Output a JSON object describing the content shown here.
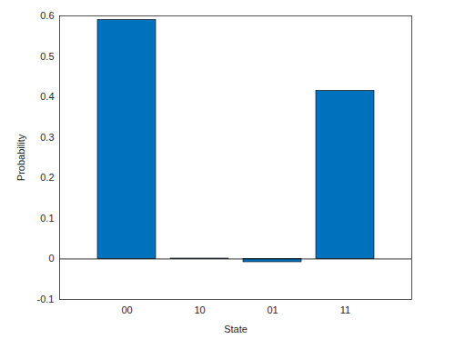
{
  "chart_data": {
    "type": "bar",
    "xlabel": "State",
    "ylabel": "Probability",
    "categories": [
      "00",
      "10",
      "01",
      "11"
    ],
    "values": [
      0.59,
      0.001,
      -0.008,
      0.415
    ],
    "color": "#0072bd",
    "ylim": [
      -0.1,
      0.6
    ],
    "yticks": [
      -0.1,
      0,
      0.1,
      0.2,
      0.3,
      0.4,
      0.5,
      0.6
    ],
    "grid": false
  }
}
